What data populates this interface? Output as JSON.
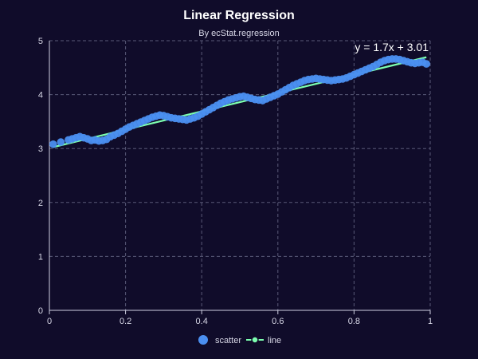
{
  "chart_data": {
    "type": "scatter",
    "title": "Linear Regression",
    "subtitle": "By ecStat.regression",
    "xlim": [
      0,
      1
    ],
    "ylim": [
      0,
      5
    ],
    "x_ticks": [
      "0",
      "0.2",
      "0.4",
      "0.6",
      "0.8",
      "1"
    ],
    "y_ticks": [
      "0",
      "1",
      "2",
      "3",
      "4",
      "5"
    ],
    "grid": true,
    "legend_placement": "bottom",
    "legend": {
      "scatter": "scatter",
      "line": "line"
    },
    "colors": {
      "scatter": "#4b8ff0",
      "line": "#7dffb0"
    },
    "regression": {
      "slope": 1.7,
      "intercept": 3.01,
      "label": "y = 1.7x + 3.01"
    },
    "series": [
      {
        "name": "scatter",
        "points": [
          [
            0.01,
            3.08
          ],
          [
            0.03,
            3.12
          ],
          [
            0.05,
            3.16
          ],
          [
            0.06,
            3.18
          ],
          [
            0.07,
            3.2
          ],
          [
            0.08,
            3.22
          ],
          [
            0.09,
            3.2
          ],
          [
            0.1,
            3.18
          ],
          [
            0.11,
            3.15
          ],
          [
            0.12,
            3.16
          ],
          [
            0.13,
            3.14
          ],
          [
            0.14,
            3.15
          ],
          [
            0.15,
            3.17
          ],
          [
            0.16,
            3.22
          ],
          [
            0.17,
            3.25
          ],
          [
            0.18,
            3.28
          ],
          [
            0.19,
            3.32
          ],
          [
            0.2,
            3.36
          ],
          [
            0.21,
            3.4
          ],
          [
            0.22,
            3.43
          ],
          [
            0.23,
            3.46
          ],
          [
            0.24,
            3.49
          ],
          [
            0.25,
            3.52
          ],
          [
            0.26,
            3.55
          ],
          [
            0.27,
            3.58
          ],
          [
            0.28,
            3.6
          ],
          [
            0.29,
            3.62
          ],
          [
            0.3,
            3.61
          ],
          [
            0.31,
            3.59
          ],
          [
            0.32,
            3.57
          ],
          [
            0.33,
            3.56
          ],
          [
            0.34,
            3.55
          ],
          [
            0.35,
            3.54
          ],
          [
            0.36,
            3.53
          ],
          [
            0.37,
            3.55
          ],
          [
            0.38,
            3.57
          ],
          [
            0.39,
            3.6
          ],
          [
            0.4,
            3.64
          ],
          [
            0.41,
            3.68
          ],
          [
            0.42,
            3.72
          ],
          [
            0.43,
            3.76
          ],
          [
            0.44,
            3.8
          ],
          [
            0.45,
            3.84
          ],
          [
            0.46,
            3.87
          ],
          [
            0.47,
            3.9
          ],
          [
            0.48,
            3.92
          ],
          [
            0.49,
            3.94
          ],
          [
            0.5,
            3.96
          ],
          [
            0.51,
            3.97
          ],
          [
            0.52,
            3.95
          ],
          [
            0.53,
            3.93
          ],
          [
            0.54,
            3.91
          ],
          [
            0.55,
            3.9
          ],
          [
            0.56,
            3.89
          ],
          [
            0.57,
            3.92
          ],
          [
            0.58,
            3.95
          ],
          [
            0.59,
            3.98
          ],
          [
            0.6,
            4.01
          ],
          [
            0.61,
            4.05
          ],
          [
            0.62,
            4.09
          ],
          [
            0.63,
            4.13
          ],
          [
            0.64,
            4.17
          ],
          [
            0.65,
            4.2
          ],
          [
            0.66,
            4.23
          ],
          [
            0.67,
            4.26
          ],
          [
            0.68,
            4.28
          ],
          [
            0.69,
            4.29
          ],
          [
            0.7,
            4.3
          ],
          [
            0.71,
            4.29
          ],
          [
            0.72,
            4.28
          ],
          [
            0.73,
            4.27
          ],
          [
            0.74,
            4.26
          ],
          [
            0.75,
            4.27
          ],
          [
            0.76,
            4.28
          ],
          [
            0.77,
            4.29
          ],
          [
            0.78,
            4.31
          ],
          [
            0.79,
            4.34
          ],
          [
            0.8,
            4.37
          ],
          [
            0.81,
            4.4
          ],
          [
            0.82,
            4.43
          ],
          [
            0.83,
            4.46
          ],
          [
            0.84,
            4.49
          ],
          [
            0.85,
            4.52
          ],
          [
            0.86,
            4.56
          ],
          [
            0.87,
            4.6
          ],
          [
            0.88,
            4.63
          ],
          [
            0.89,
            4.65
          ],
          [
            0.9,
            4.66
          ],
          [
            0.91,
            4.66
          ],
          [
            0.92,
            4.65
          ],
          [
            0.93,
            4.63
          ],
          [
            0.94,
            4.61
          ],
          [
            0.95,
            4.59
          ],
          [
            0.96,
            4.58
          ],
          [
            0.97,
            4.59
          ],
          [
            0.98,
            4.6
          ],
          [
            0.99,
            4.57
          ]
        ]
      },
      {
        "name": "line",
        "points": [
          [
            0.01,
            3.027
          ],
          [
            0.99,
            4.693
          ]
        ]
      }
    ]
  }
}
